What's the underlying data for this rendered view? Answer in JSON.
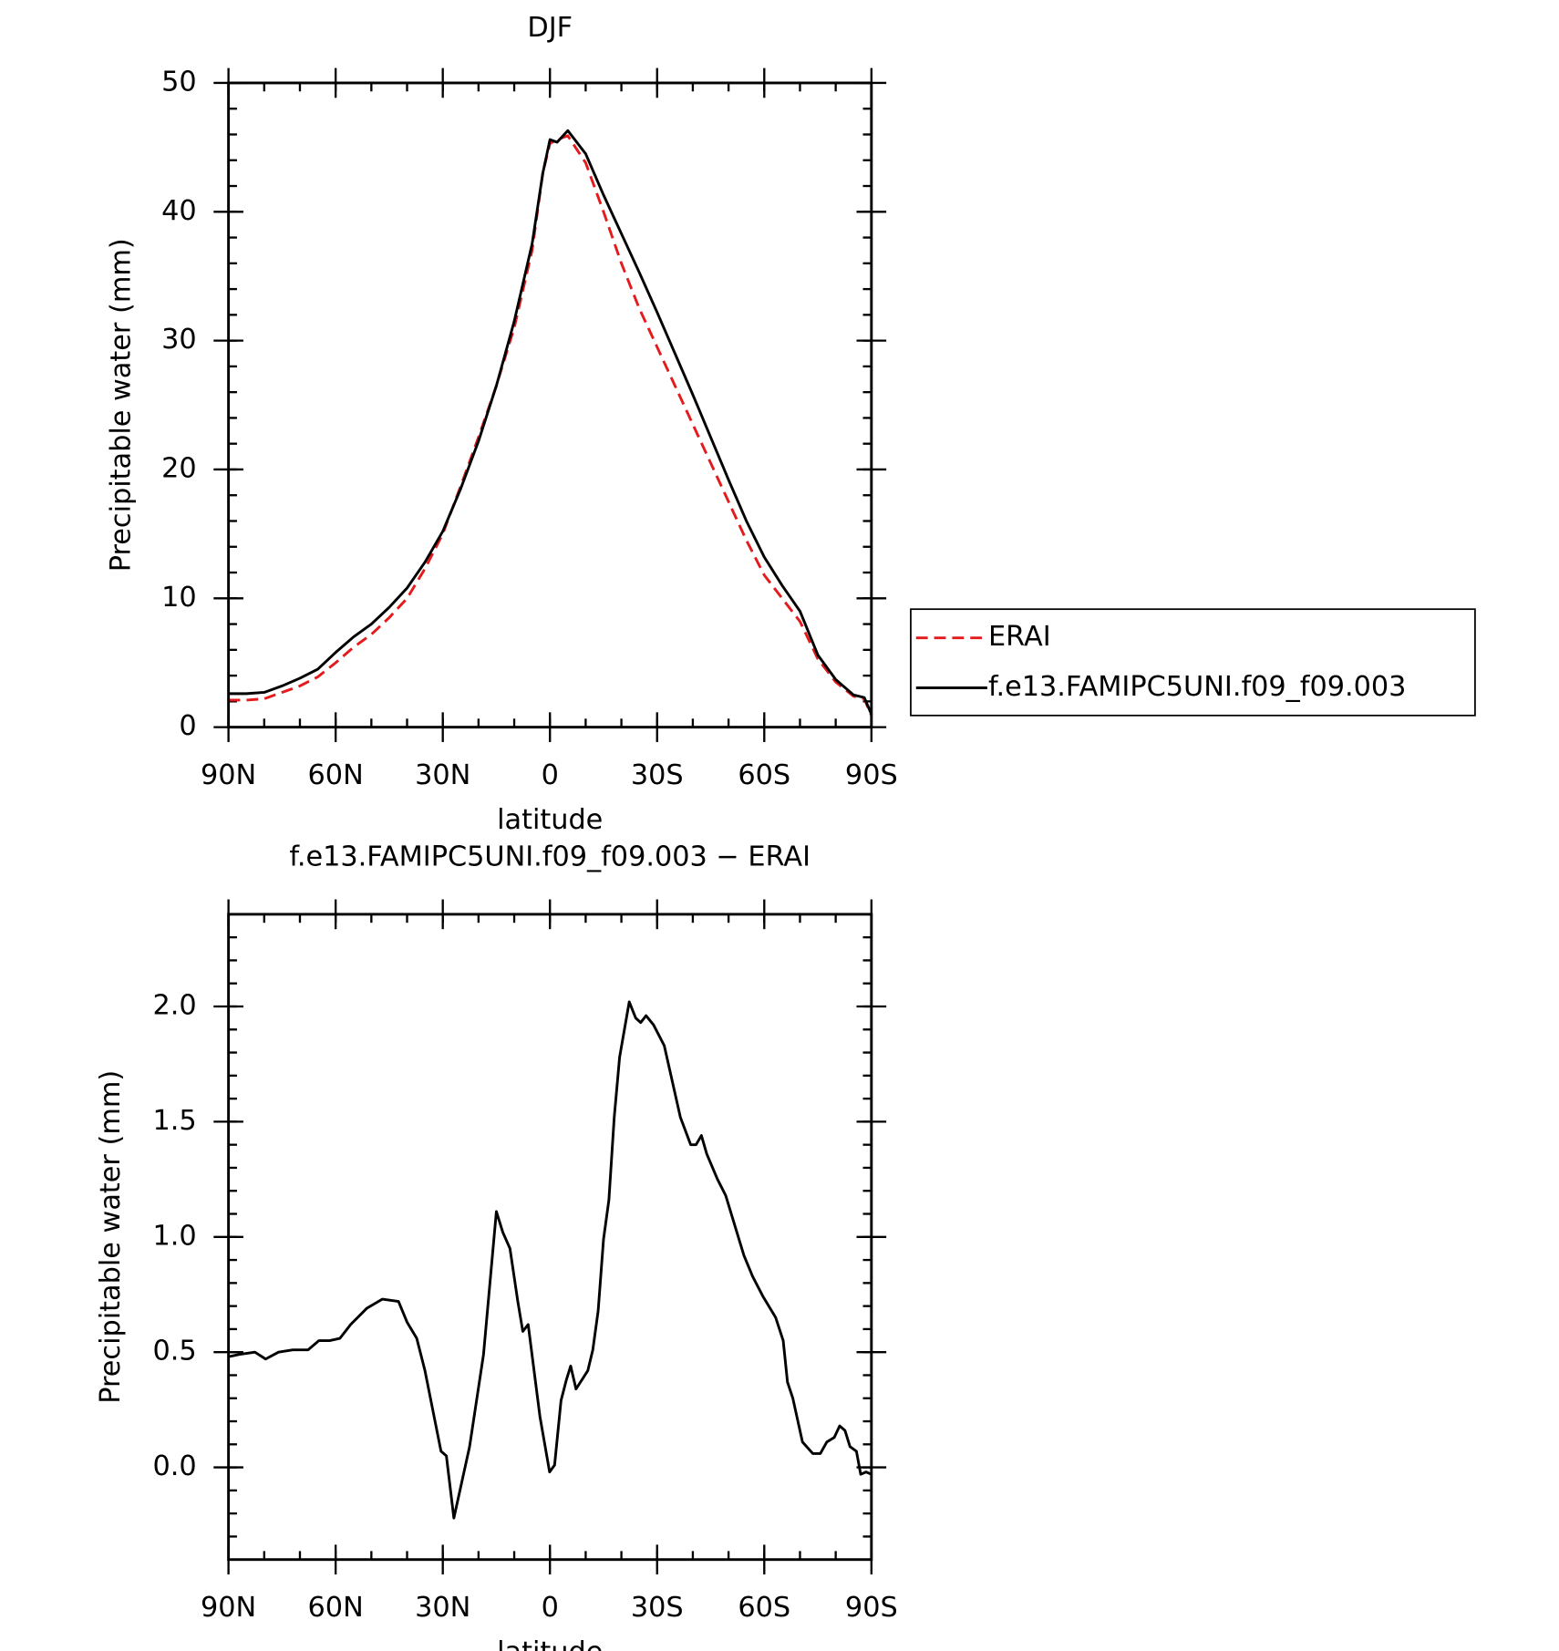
{
  "chart_data": [
    {
      "type": "line",
      "title": "DJF",
      "xlabel": "latitude",
      "ylabel": "Precipitable water (mm)",
      "x": [
        90,
        85,
        80,
        75,
        70,
        65,
        60,
        55,
        50,
        45,
        40,
        35,
        30,
        25,
        20,
        15,
        10,
        5,
        2,
        0,
        -2,
        -5,
        -10,
        -15,
        -20,
        -25,
        -30,
        -35,
        -40,
        -45,
        -50,
        -55,
        -60,
        -65,
        -70,
        -75,
        -80,
        -85,
        -88,
        -90
      ],
      "series": [
        {
          "name": "ERAI",
          "color": "#e41a1c",
          "dashed": true,
          "values": [
            2.1,
            2.1,
            2.2,
            2.7,
            3.2,
            3.9,
            5.0,
            6.2,
            7.2,
            8.5,
            10.0,
            12.3,
            15.0,
            18.7,
            22.5,
            26.5,
            31.0,
            37.0,
            43.0,
            45.3,
            45.6,
            45.9,
            43.8,
            40.0,
            36.0,
            32.5,
            29.5,
            26.5,
            23.5,
            20.5,
            17.5,
            14.5,
            11.8,
            10.0,
            8.2,
            5.3,
            3.5,
            2.4,
            2.2,
            0.9
          ]
        },
        {
          "name": "f.e13.FAMIPC5UNI.f09_f09.003",
          "color": "#000000",
          "dashed": false,
          "values": [
            2.6,
            2.6,
            2.7,
            3.2,
            3.8,
            4.5,
            5.8,
            7.0,
            8.0,
            9.3,
            10.8,
            12.8,
            15.2,
            18.5,
            22.2,
            26.5,
            31.5,
            37.5,
            43.0,
            45.6,
            45.4,
            46.3,
            44.5,
            41.3,
            38.3,
            35.3,
            32.2,
            29.0,
            25.8,
            22.5,
            19.2,
            16.0,
            13.2,
            11.0,
            9.0,
            5.6,
            3.7,
            2.5,
            2.3,
            1.0
          ]
        }
      ],
      "xlim": [
        90,
        -90
      ],
      "xticks": [
        {
          "value": 90,
          "label": "90N"
        },
        {
          "value": 60,
          "label": "60N"
        },
        {
          "value": 30,
          "label": "30N"
        },
        0,
        {
          "value": -30,
          "label": "30S"
        },
        {
          "value": -60,
          "label": "60S"
        },
        {
          "value": -90,
          "label": "90S"
        }
      ],
      "ylim": [
        0,
        50
      ],
      "yticks": [
        0,
        10,
        20,
        30,
        40,
        50
      ],
      "legend": "outside right"
    },
    {
      "type": "line",
      "title": "f.e13.FAMIPC5UNI.f09_f09.003 − ERAI",
      "xlabel": "latitude",
      "ylabel": "Precipitable water (mm)",
      "x": [
        90,
        87,
        82.6,
        79.6,
        76,
        72,
        67.7,
        64.7,
        61.7,
        58.8,
        55.8,
        51.3,
        46.9,
        42.4,
        40,
        37.3,
        35,
        30.5,
        29,
        26.9,
        22.5,
        18.6,
        15,
        13.2,
        11.2,
        9,
        7.6,
        6.1,
        2.8,
        0.1,
        -1.3,
        -3.1,
        -4.6,
        -5.8,
        -7.3,
        -10.6,
        -12,
        -13.5,
        -15,
        -16.5,
        -18,
        -19.5,
        -22.2,
        -24,
        -25.4,
        -26.9,
        -29,
        -32,
        -36.5,
        -39.4,
        -40.9,
        -42.4,
        -43.9,
        -46.9,
        -49.2,
        -54.3,
        -56.7,
        -59.7,
        -63.2,
        -65.3,
        -66.5,
        -68,
        -70.7,
        -73.6,
        -75.7,
        -77.5,
        -79.6,
        -81.1,
        -82.6,
        -84,
        -85.8,
        -87,
        -88.5,
        -90
      ],
      "series": [
        {
          "name": "f.e13.FAMIPC5UNI.f09_f09.003 − ERAI",
          "color": "#000000",
          "dashed": false,
          "values": [
            0.48,
            0.49,
            0.5,
            0.47,
            0.5,
            0.51,
            0.51,
            0.55,
            0.55,
            0.56,
            0.62,
            0.69,
            0.73,
            0.72,
            0.63,
            0.56,
            0.42,
            0.07,
            0.05,
            -0.22,
            0.09,
            0.49,
            1.11,
            1.02,
            0.95,
            0.72,
            0.59,
            0.62,
            0.22,
            -0.02,
            0.01,
            0.29,
            0.38,
            0.44,
            0.34,
            0.42,
            0.51,
            0.68,
            0.99,
            1.16,
            1.52,
            1.78,
            2.02,
            1.95,
            1.93,
            1.96,
            1.92,
            1.83,
            1.52,
            1.4,
            1.4,
            1.44,
            1.36,
            1.25,
            1.18,
            0.92,
            0.83,
            0.74,
            0.65,
            0.55,
            0.37,
            0.3,
            0.11,
            0.06,
            0.06,
            0.11,
            0.13,
            0.18,
            0.16,
            0.09,
            0.07,
            -0.03,
            -0.02,
            -0.03
          ]
        }
      ],
      "xlim": [
        90,
        -90
      ],
      "xticks": [
        {
          "value": 90,
          "label": "90N"
        },
        {
          "value": 60,
          "label": "60N"
        },
        {
          "value": 30,
          "label": "30N"
        },
        0,
        {
          "value": -30,
          "label": "30S"
        },
        {
          "value": -60,
          "label": "60S"
        },
        {
          "value": -90,
          "label": "90S"
        }
      ],
      "ylim": [
        -0.4,
        2.4
      ],
      "yticks": [
        {
          "value": 0,
          "label": "0.0"
        },
        0.5,
        {
          "value": 1,
          "label": "1.0"
        },
        1.5,
        {
          "value": 2,
          "label": "2.0"
        }
      ]
    }
  ]
}
